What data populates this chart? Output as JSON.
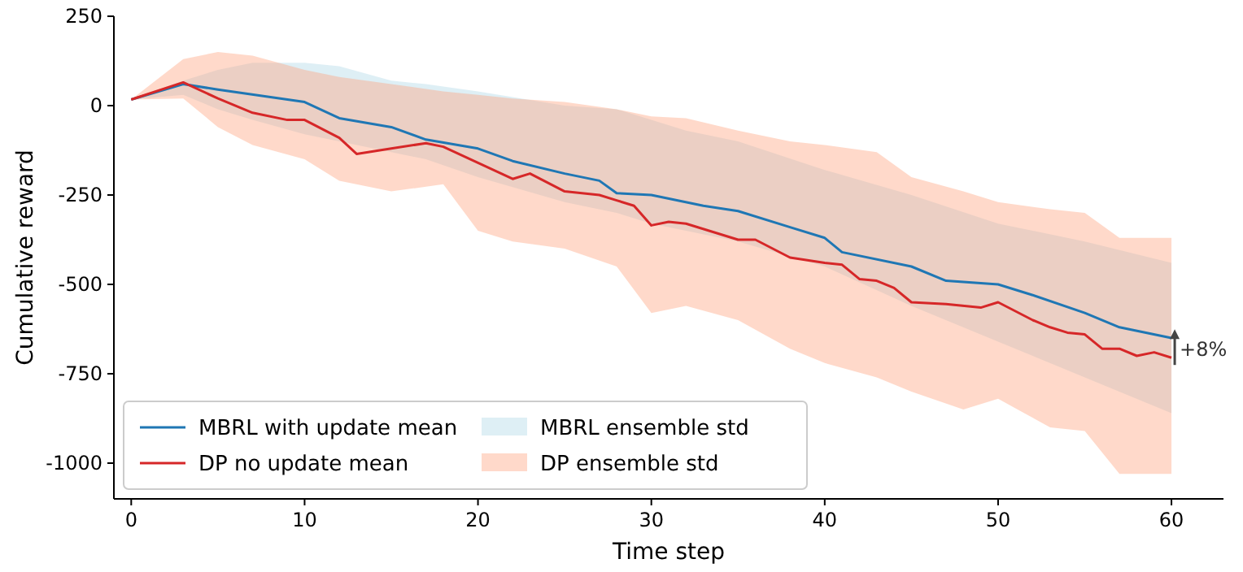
{
  "chart_data": {
    "type": "line",
    "xlabel": "Time step",
    "ylabel": "Cumulative reward",
    "xlim": [
      -1,
      63
    ],
    "ylim": [
      -1100,
      250
    ],
    "xticks": [
      0,
      10,
      20,
      30,
      40,
      50,
      60
    ],
    "yticks": [
      250,
      0,
      -250,
      -500,
      -750,
      -1000
    ],
    "grid": false,
    "legend": "bottom left",
    "series": [
      {
        "name": "MBRL ensemble std",
        "color": "#add8e6",
        "x": [
          0,
          3,
          5,
          7,
          10,
          12,
          15,
          17,
          20,
          25,
          28,
          30,
          32,
          35,
          40,
          45,
          50,
          55,
          60
        ],
        "values": [
          null,
          null,
          null,
          null,
          null,
          null,
          null,
          null,
          null,
          null,
          null,
          null,
          null,
          null,
          null,
          null,
          null,
          null,
          null
        ],
        "lower": [
          17,
          30,
          -10,
          -40,
          -80,
          -100,
          -130,
          -150,
          -200,
          -270,
          -300,
          -330,
          -350,
          -380,
          -450,
          -560,
          -660,
          -760,
          -860
        ],
        "upper": [
          17,
          70,
          100,
          120,
          120,
          110,
          70,
          60,
          40,
          0,
          -10,
          -40,
          -70,
          -100,
          -180,
          -250,
          -330,
          -380,
          -440
        ]
      },
      {
        "name": "DP ensemble std",
        "color": "#ffa07a",
        "x": [
          0,
          3,
          5,
          7,
          10,
          12,
          15,
          18,
          20,
          22,
          25,
          28,
          30,
          32,
          35,
          38,
          40,
          43,
          45,
          48,
          50,
          53,
          55,
          57,
          60
        ],
        "values": [
          null,
          null,
          null,
          null,
          null,
          null,
          null,
          null,
          null,
          null,
          null,
          null,
          null,
          null,
          null,
          null,
          null,
          null,
          null,
          null,
          null,
          null,
          null,
          null,
          null
        ],
        "lower": [
          17,
          20,
          -60,
          -110,
          -150,
          -210,
          -240,
          -220,
          -350,
          -380,
          -400,
          -450,
          -580,
          -560,
          -600,
          -680,
          -720,
          -760,
          -800,
          -850,
          -820,
          -900,
          -910,
          -1030,
          -1030
        ],
        "upper": [
          17,
          130,
          150,
          140,
          100,
          80,
          60,
          40,
          30,
          20,
          10,
          -10,
          -30,
          -35,
          -70,
          -100,
          -110,
          -130,
          -200,
          -240,
          -270,
          -290,
          -300,
          -370,
          -370
        ]
      },
      {
        "name": "MBRL with update mean",
        "color": "#1f77b4",
        "x": [
          0,
          3,
          5,
          10,
          12,
          15,
          17,
          20,
          22,
          25,
          27,
          28,
          30,
          33,
          35,
          38,
          40,
          41,
          45,
          47,
          50,
          52,
          55,
          57,
          60
        ],
        "values": [
          17,
          60,
          45,
          10,
          -35,
          -60,
          -95,
          -120,
          -155,
          -190,
          -210,
          -245,
          -250,
          -280,
          -295,
          -340,
          -370,
          -410,
          -450,
          -490,
          -500,
          -530,
          -580,
          -620,
          -650
        ]
      },
      {
        "name": "DP no update mean",
        "color": "#d62728",
        "x": [
          0,
          3,
          5,
          7,
          9,
          10,
          12,
          13,
          15,
          17,
          18,
          20,
          22,
          23,
          25,
          27,
          28,
          29,
          30,
          31,
          32,
          35,
          36,
          38,
          40,
          41,
          42,
          43,
          44,
          45,
          47,
          49,
          50,
          52,
          53,
          54,
          55,
          56,
          57,
          58,
          59,
          60
        ],
        "values": [
          17,
          65,
          20,
          -20,
          -40,
          -40,
          -90,
          -135,
          -120,
          -105,
          -115,
          -160,
          -205,
          -190,
          -240,
          -250,
          -265,
          -280,
          -335,
          -325,
          -330,
          -375,
          -375,
          -425,
          -440,
          -445,
          -485,
          -490,
          -510,
          -550,
          -555,
          -565,
          -550,
          -600,
          -620,
          -635,
          -640,
          -680,
          -680,
          -700,
          -690,
          -705
        ]
      }
    ],
    "annotations": [
      {
        "text": "+8%",
        "x": 60,
        "y": -680
      }
    ]
  }
}
